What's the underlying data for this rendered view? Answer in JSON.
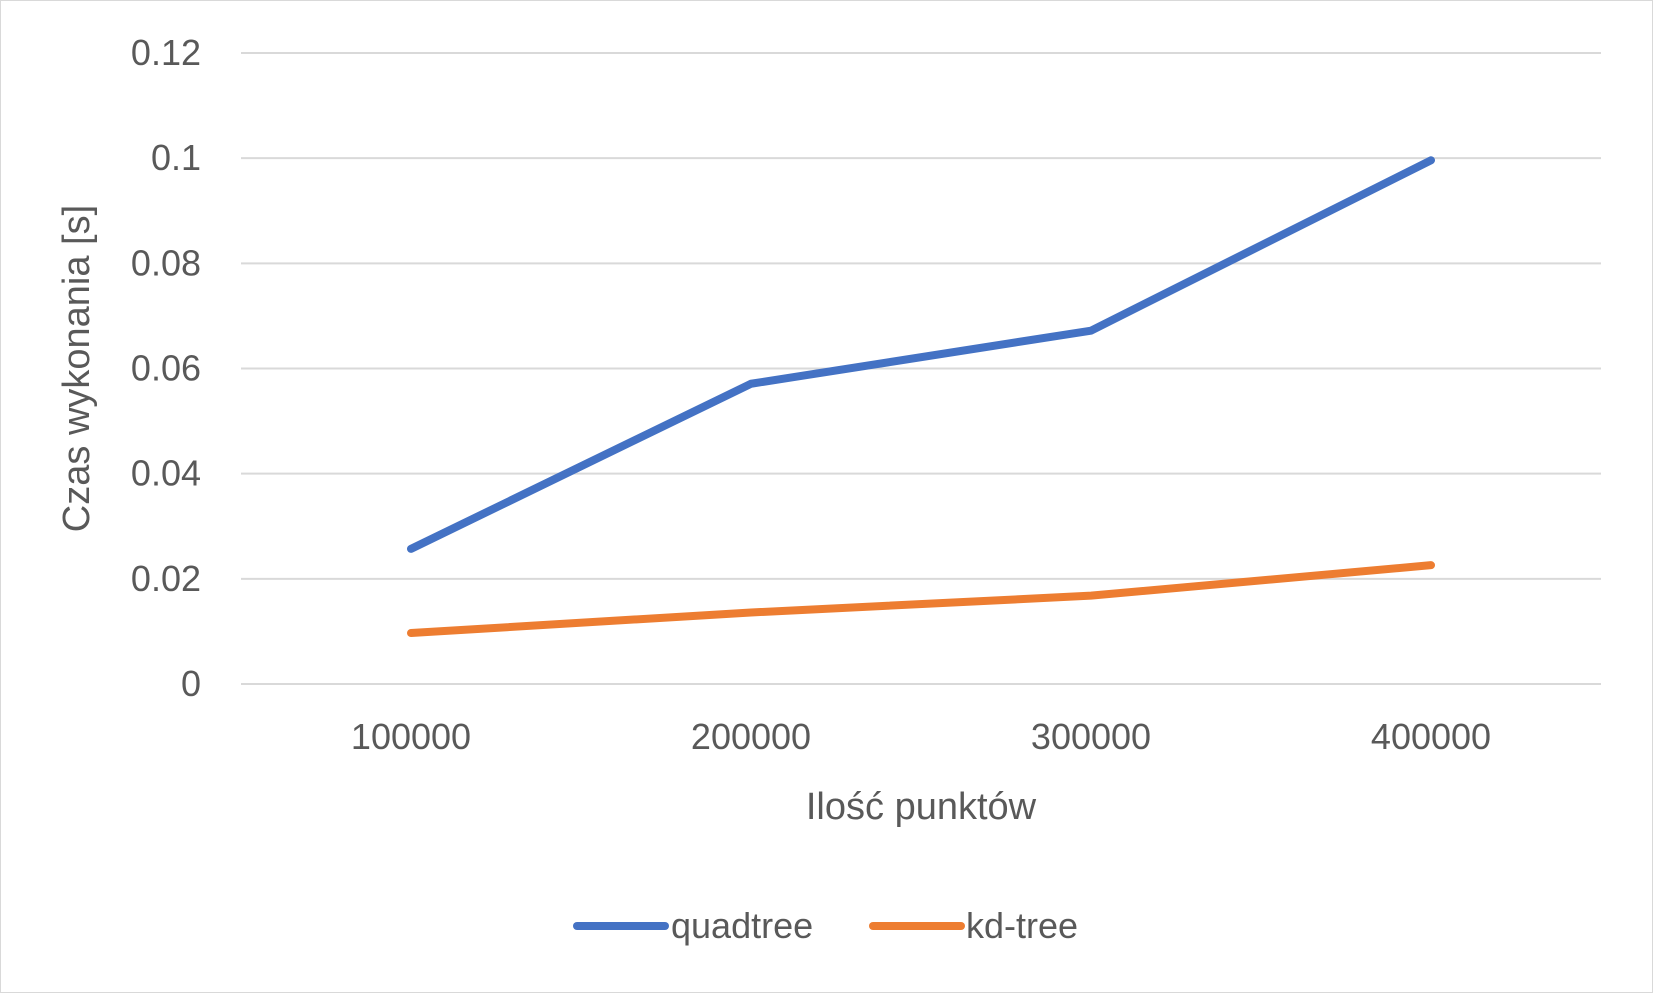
{
  "chart_data": {
    "type": "line",
    "title": "",
    "xlabel": "Ilość punktów",
    "ylabel": "Czas wykonania [s]",
    "categories": [
      "100000",
      "200000",
      "300000",
      "400000"
    ],
    "ylim": [
      0,
      0.12
    ],
    "yticks": [
      "0",
      "0.02",
      "0.04",
      "0.06",
      "0.08",
      "0.1",
      "0.12"
    ],
    "ytick_values": [
      0,
      0.02,
      0.04,
      0.06,
      0.08,
      0.1,
      0.12
    ],
    "grid": "horizontal",
    "legend_position": "bottom",
    "series": [
      {
        "name": "quadtree",
        "color": "#4472c4",
        "values": [
          0.0257,
          0.0571,
          0.0672,
          0.0996
        ]
      },
      {
        "name": "kd-tree",
        "color": "#ed7d31",
        "values": [
          0.0097,
          0.0136,
          0.0168,
          0.0226
        ]
      }
    ]
  }
}
